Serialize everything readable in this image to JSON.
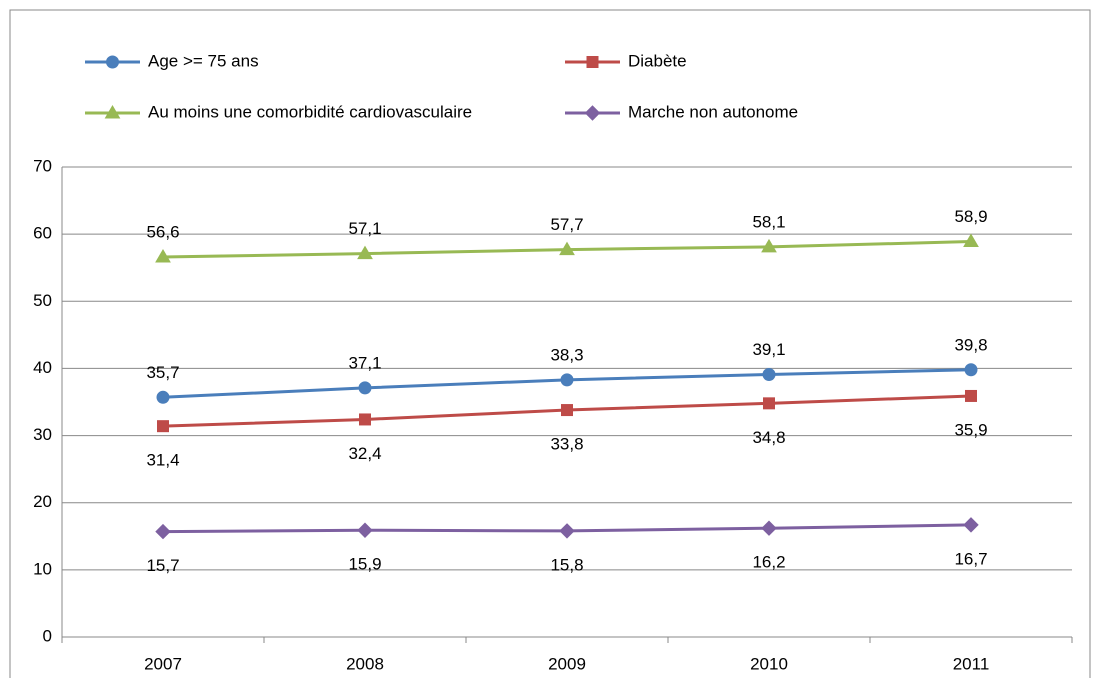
{
  "chart_data": {
    "type": "line",
    "categories": [
      "2007",
      "2008",
      "2009",
      "2010",
      "2011"
    ],
    "series": [
      {
        "name": "Age >= 75 ans",
        "color": "#4a7ebb",
        "marker": "circle",
        "label_position": "above",
        "values": [
          35.7,
          37.1,
          38.3,
          39.1,
          39.8
        ],
        "value_labels": [
          "35,7",
          "37,1",
          "38,3",
          "39,1",
          "39,8"
        ]
      },
      {
        "name": "Diabète",
        "color": "#be4b48",
        "marker": "square",
        "label_position": "below",
        "values": [
          31.4,
          32.4,
          33.8,
          34.8,
          35.9
        ],
        "value_labels": [
          "31,4",
          "32,4",
          "33,8",
          "34,8",
          "35,9"
        ]
      },
      {
        "name": "Au moins une comorbidité cardiovasculaire",
        "color": "#98b954",
        "marker": "triangle",
        "label_position": "above",
        "values": [
          56.6,
          57.1,
          57.7,
          58.1,
          58.9
        ],
        "value_labels": [
          "56,6",
          "57,1",
          "57,7",
          "58,1",
          "58,9"
        ]
      },
      {
        "name": "Marche non autonome",
        "color": "#7d60a0",
        "marker": "diamond",
        "label_position": "below",
        "values": [
          15.7,
          15.9,
          15.8,
          16.2,
          16.7
        ],
        "value_labels": [
          "15,7",
          "15,9",
          "15,8",
          "16,2",
          "16,7"
        ]
      }
    ],
    "ylim": [
      0,
      70
    ],
    "yticks": [
      0,
      10,
      20,
      30,
      40,
      50,
      60,
      70
    ],
    "grid": true,
    "legend": "top"
  }
}
